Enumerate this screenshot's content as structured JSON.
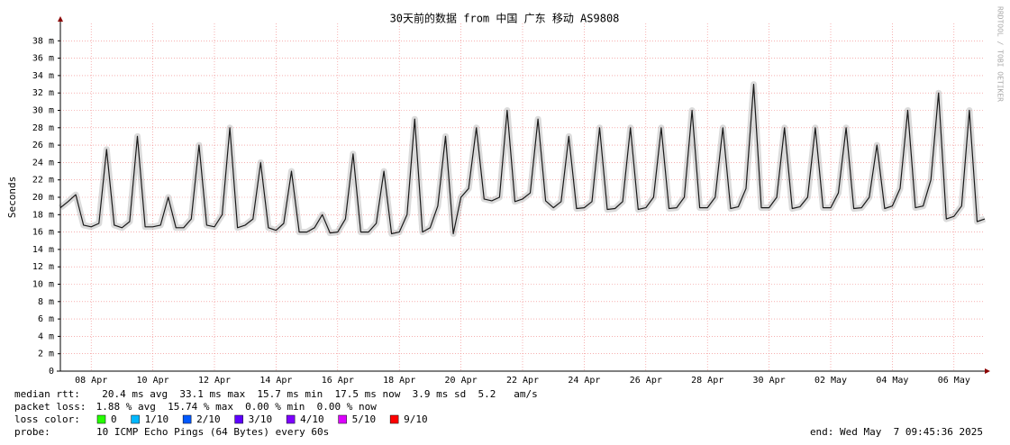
{
  "chart_data": {
    "type": "line",
    "title": "30天前的数据 from 中国 广东 移动 AS9808",
    "y_label": "Seconds",
    "watermark": "RRDTOOL / TOBI OETIKER",
    "categories": [
      null,
      null,
      null,
      null,
      "08 Apr",
      null,
      null,
      null,
      null,
      null,
      null,
      null,
      "10 Apr",
      null,
      null,
      null,
      null,
      null,
      null,
      null,
      "12 Apr",
      null,
      null,
      null,
      null,
      null,
      null,
      null,
      "14 Apr",
      null,
      null,
      null,
      null,
      null,
      null,
      null,
      "16 Apr",
      null,
      null,
      null,
      null,
      null,
      null,
      null,
      "18 Apr",
      null,
      null,
      null,
      null,
      null,
      null,
      null,
      "20 Apr",
      null,
      null,
      null,
      null,
      null,
      null,
      null,
      "22 Apr",
      null,
      null,
      null,
      null,
      null,
      null,
      null,
      "24 Apr",
      null,
      null,
      null,
      null,
      null,
      null,
      null,
      "26 Apr",
      null,
      null,
      null,
      null,
      null,
      null,
      null,
      "28 Apr",
      null,
      null,
      null,
      null,
      null,
      null,
      null,
      "30 Apr",
      null,
      null,
      null,
      null,
      null,
      null,
      null,
      "02 May",
      null,
      null,
      null,
      null,
      null,
      null,
      null,
      "04 May",
      null,
      null,
      null,
      null,
      null,
      null,
      null,
      "06 May",
      null,
      null,
      null,
      null
    ],
    "series": [
      {
        "name": "median rtt:",
        "color": "#1a1a1a",
        "values": [
          18.8,
          19.5,
          20.3,
          16.8,
          16.6,
          17,
          25.5,
          16.8,
          16.5,
          17.2,
          27,
          16.6,
          16.6,
          16.8,
          20,
          16.5,
          16.5,
          17.5,
          26,
          16.8,
          16.6,
          18,
          28,
          16.5,
          16.8,
          17.5,
          24,
          16.5,
          16.2,
          17,
          23,
          16,
          16,
          16.5,
          18,
          15.9,
          16,
          17.5,
          25,
          16,
          16,
          17,
          23,
          15.8,
          16,
          18,
          29,
          16,
          16.5,
          19,
          27,
          15.8,
          20,
          21,
          28,
          19.8,
          19.6,
          20,
          30,
          19.5,
          19.8,
          20.5,
          29,
          19.6,
          18.8,
          19.5,
          27,
          18.7,
          18.8,
          19.5,
          28,
          18.6,
          18.7,
          19.5,
          28,
          18.6,
          18.8,
          20,
          28,
          18.7,
          18.8,
          20,
          30,
          18.8,
          18.8,
          20,
          28,
          18.7,
          18.9,
          21,
          33,
          18.8,
          18.8,
          20,
          28,
          18.7,
          18.9,
          20,
          28,
          18.8,
          18.8,
          20.5,
          28,
          18.7,
          18.8,
          20,
          26,
          18.7,
          19,
          21,
          30,
          18.8,
          19,
          22,
          32,
          17.5,
          17.8,
          19,
          30,
          17.2,
          17.5
        ]
      }
    ],
    "ylim": [
      0,
      40
    ],
    "yticks": [
      0,
      {
        "value": 2,
        "label": "2 m"
      },
      {
        "value": 4,
        "label": "4 m"
      },
      {
        "value": 6,
        "label": "6 m"
      },
      {
        "value": 8,
        "label": "8 m"
      },
      {
        "value": 10,
        "label": "10 m"
      },
      {
        "value": 12,
        "label": "12 m"
      },
      {
        "value": 14,
        "label": "14 m"
      },
      {
        "value": 16,
        "label": "16 m"
      },
      {
        "value": 18,
        "label": "18 m"
      },
      {
        "value": 20,
        "label": "20 m"
      },
      {
        "value": 22,
        "label": "22 m"
      },
      {
        "value": 24,
        "label": "24 m"
      },
      {
        "value": 26,
        "label": "26 m"
      },
      {
        "value": 28,
        "label": "28 m"
      },
      {
        "value": 30,
        "label": "30 m"
      },
      {
        "value": 32,
        "label": "32 m"
      },
      {
        "value": 34,
        "label": "34 m"
      },
      {
        "value": 36,
        "label": "36 m"
      },
      {
        "value": 38,
        "label": "38 m"
      }
    ],
    "grid": true,
    "median_stats": "  20.4 ms avg  33.1 ms max  15.7 ms min  17.5 ms now  3.9 ms sd  5.2   am/s",
    "packet_loss_label": "packet loss:",
    "packet_loss_stats": " 1.88 % avg  15.74 % max  0.00 % min  0.00 % now",
    "loss_color_label": "loss color:",
    "loss_colors": [
      {
        "label": "0",
        "color": "#26ff00"
      },
      {
        "label": "1/10",
        "color": "#00b8ff"
      },
      {
        "label": "2/10",
        "color": "#0059ff"
      },
      {
        "label": "3/10",
        "color": "#5e00ff"
      },
      {
        "label": "4/10",
        "color": "#7e00ff"
      },
      {
        "label": "5/10",
        "color": "#dd00ff"
      },
      {
        "label": "9/10",
        "color": "#ff0000"
      }
    ],
    "probe_label": "probe:",
    "probe_text": "10 ICMP Echo Pings (64 Bytes) every 60s",
    "end_text": "end: Wed May  7 09:45:36 2025"
  }
}
